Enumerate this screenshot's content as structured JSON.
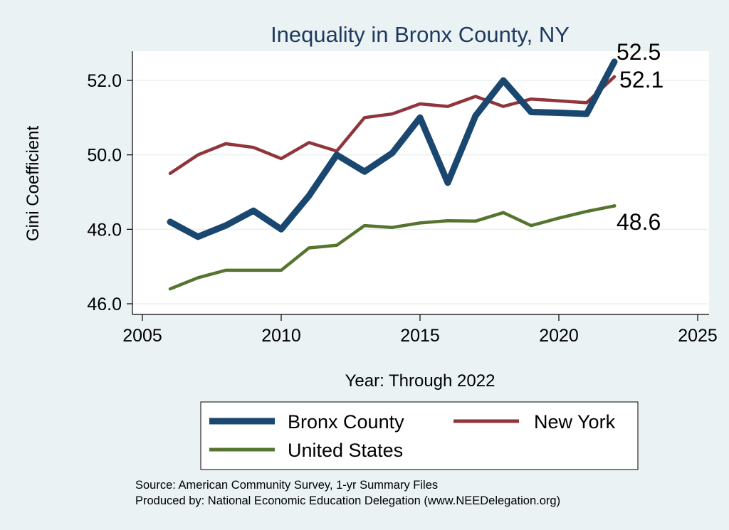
{
  "chart_data": {
    "type": "line",
    "title": "Inequality in Bronx County, NY",
    "xlabel": "Year: Through 2022",
    "ylabel": "Gini Coefficient",
    "xlim": [
      2005,
      2025
    ],
    "ylim": [
      46.0,
      52.5
    ],
    "x_ticks": [
      2005,
      2010,
      2015,
      2020,
      2025
    ],
    "x_tick_labels": [
      "2005",
      "2010",
      "2015",
      "2020",
      "2025"
    ],
    "y_ticks": [
      46.0,
      48.0,
      50.0,
      52.0
    ],
    "y_tick_labels": [
      "46.0",
      "48.0",
      "50.0",
      "52.0"
    ],
    "grid": true,
    "legend_position": "bottom",
    "x": [
      2006,
      2007,
      2008,
      2009,
      2010,
      2011,
      2012,
      2013,
      2014,
      2015,
      2016,
      2017,
      2018,
      2019,
      2020,
      2021,
      2022
    ],
    "series": [
      {
        "name": "Bronx County",
        "color": "#1a476f",
        "values": [
          48.2,
          47.8,
          48.1,
          48.5,
          48.0,
          48.9,
          50.0,
          49.55,
          50.05,
          51.0,
          49.25,
          51.05,
          52.0,
          51.15,
          51.13,
          51.1,
          52.5
        ],
        "end_label": "52.5"
      },
      {
        "name": "New York",
        "color": "#90353b",
        "values": [
          49.5,
          50.0,
          50.3,
          50.2,
          49.9,
          50.33,
          50.1,
          51.0,
          51.1,
          51.37,
          51.3,
          51.57,
          51.3,
          51.5,
          51.45,
          51.4,
          52.1
        ],
        "end_label": "52.1"
      },
      {
        "name": "United States",
        "color": "#55752f",
        "values": [
          46.4,
          46.7,
          46.9,
          46.9,
          46.9,
          47.5,
          47.57,
          48.1,
          48.05,
          48.17,
          48.23,
          48.22,
          48.45,
          48.1,
          48.3,
          48.48,
          48.63
        ],
        "end_label": "48.6"
      }
    ],
    "notes": [
      "Source: American Community Survey, 1-yr Summary Files",
      "Produced by: National Economic Education Delegation (www.NEEDelegation.org)"
    ]
  }
}
